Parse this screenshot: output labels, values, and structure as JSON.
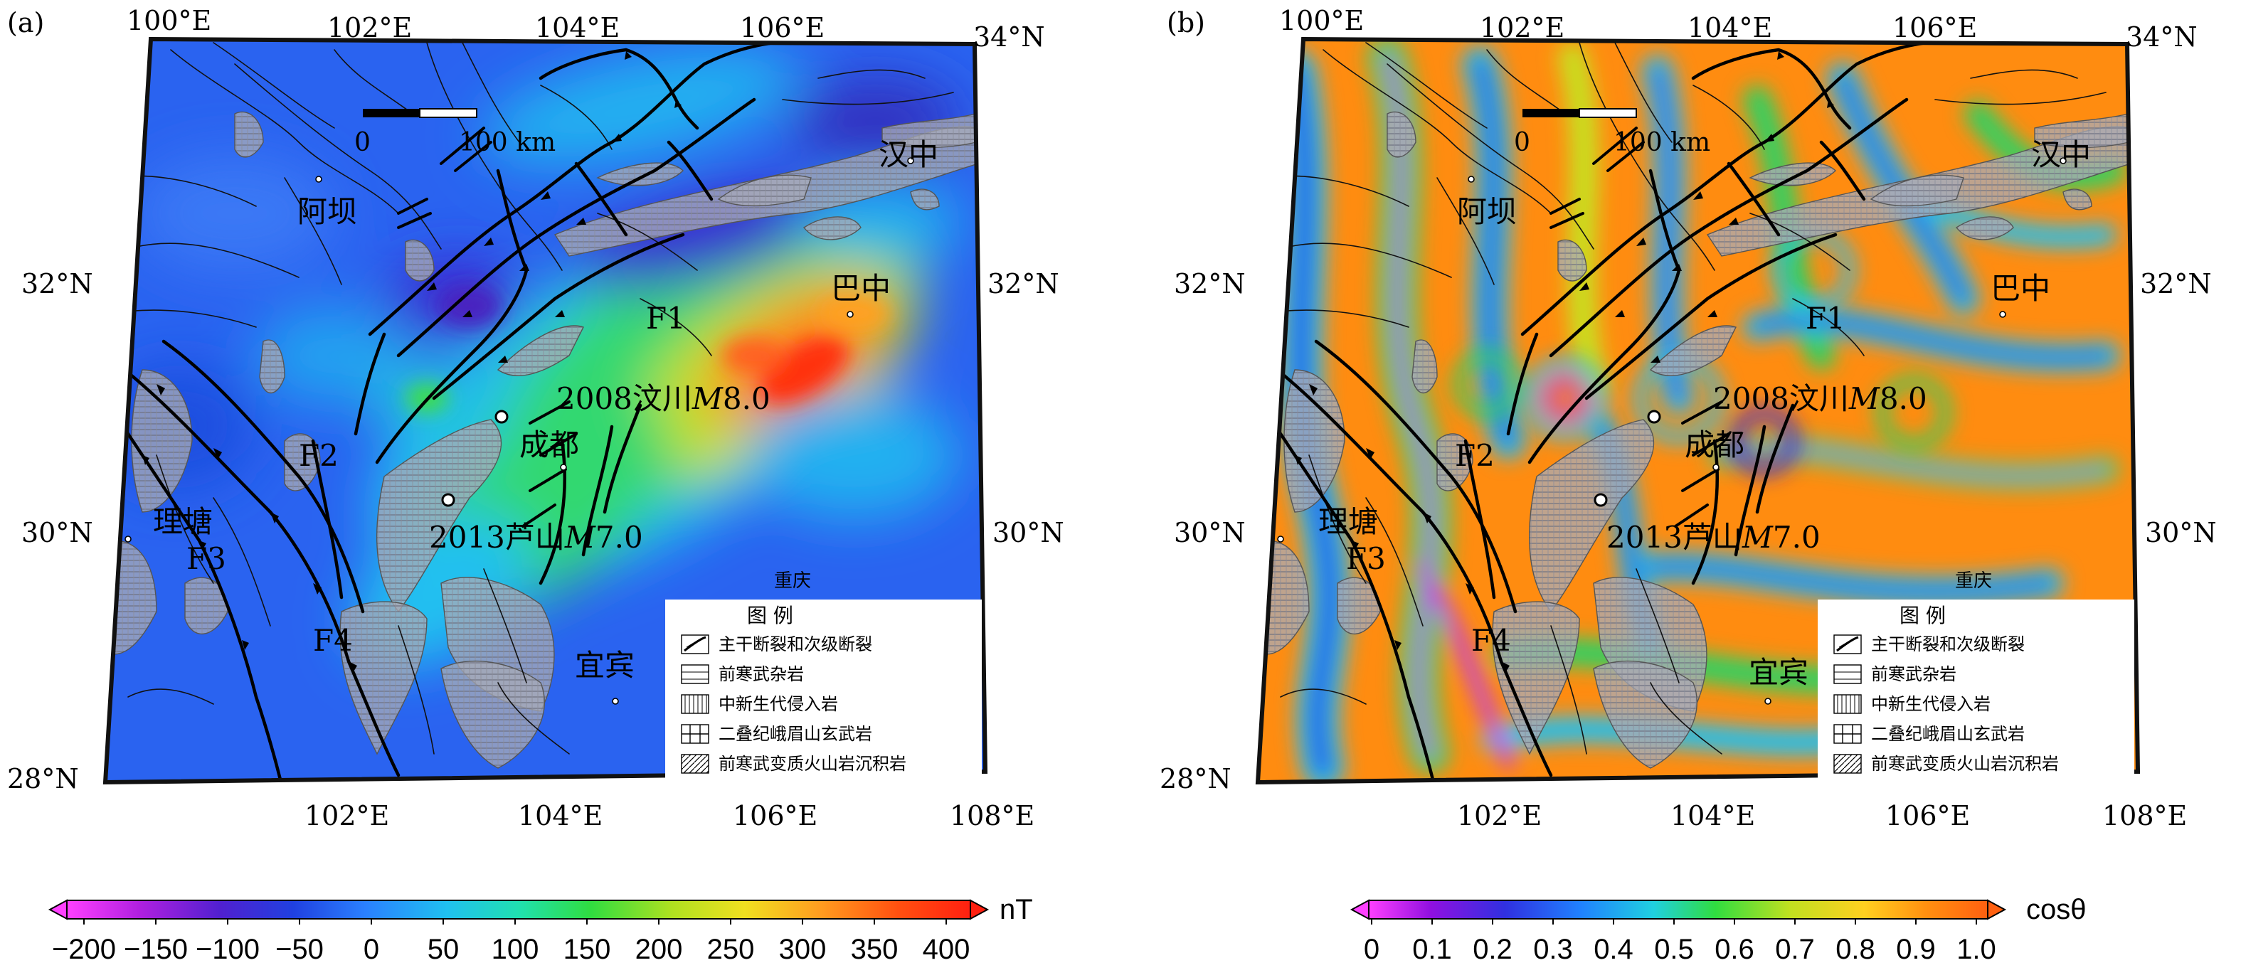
{
  "panels": [
    {
      "id": "a",
      "panel_label": "(a)",
      "colorbar": {
        "unit": "nT",
        "ticks": [
          "−200",
          "−150",
          "−100",
          "−50",
          "0",
          "50",
          "100",
          "150",
          "200",
          "250",
          "300",
          "350",
          "400"
        ]
      }
    },
    {
      "id": "b",
      "panel_label": "(b)",
      "colorbar": {
        "unit": "cosθ",
        "ticks": [
          "0",
          "0.1",
          "0.2",
          "0.3",
          "0.4",
          "0.5",
          "0.6",
          "0.7",
          "0.8",
          "0.9",
          "1.0"
        ]
      }
    }
  ],
  "axes": {
    "top": [
      "100°E",
      "102°E",
      "104°E",
      "106°E"
    ],
    "top_right": "34°N",
    "bottom": [
      "102°E",
      "104°E",
      "106°E",
      "108°E"
    ],
    "left": [
      "32°N",
      "30°N",
      "28°N"
    ],
    "right": [
      "32°N",
      "30°N"
    ]
  },
  "scale_bar": {
    "start": "0",
    "end": "100 km"
  },
  "places": {
    "hanzhong": "汉中",
    "aba": "阿坝",
    "bazhong": "巴中",
    "chengdu": "成都",
    "litang": "理塘",
    "yibin": "宜宾",
    "chongqing": "重庆"
  },
  "faults": {
    "f1": "F1",
    "f2": "F2",
    "f3": "F3",
    "f4": "F4"
  },
  "earthquakes": {
    "wenchuan": {
      "year": "2008",
      "name": "汶川",
      "mag_symbol": "M",
      "mag_value": "8.0"
    },
    "lushan": {
      "year": "2013",
      "name": "芦山",
      "mag_symbol": "M",
      "mag_value": "7.0"
    }
  },
  "legend": {
    "title": "图    例",
    "items": [
      "主干断裂和次级断裂",
      "前寒武杂岩",
      "中新生代侵入岩",
      "二叠纪峨眉山玄武岩",
      "前寒武变质火山岩沉积岩"
    ]
  },
  "colors": {
    "map_a_background": "#2a63f0",
    "anomaly_high": "#ff3010",
    "anomaly_mid": "#33dd33",
    "panel_b_orange": "#ff8800",
    "fault_line": "#111111",
    "pattern_gray": "#a9acb6"
  }
}
